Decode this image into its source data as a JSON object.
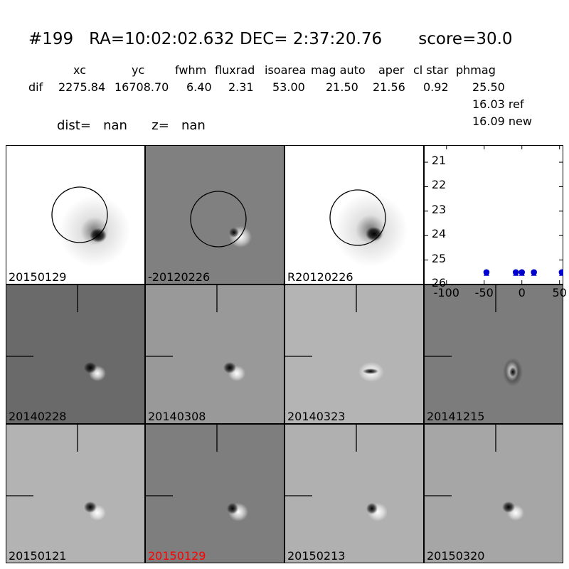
{
  "title": "#199   RA=10:02:02.632 DEC= 2:37:20.76       score=30.0",
  "columns": {
    "xc": "xc",
    "yc": "yc",
    "fwhm": "fwhm",
    "fluxrad": "fluxrad",
    "isoarea": "isoarea",
    "magauto": "mag auto",
    "aper": "aper",
    "clstar": "cl star",
    "phmag": "phmag"
  },
  "dif": {
    "label": "dif",
    "xc": "2275.84",
    "yc": "16708.70",
    "fwhm": "6.40",
    "fluxrad": "2.31",
    "isoarea": "53.00",
    "magauto": "21.50",
    "aper": "21.56",
    "clstar": "0.92",
    "phmag": "25.50"
  },
  "ref_line": "16.03 ref",
  "new_line": "16.09 new",
  "dist_line": "dist=   nan      z=   nan",
  "top_panels": [
    {
      "label": "20150129"
    },
    {
      "label": "-20120226"
    },
    {
      "label": "R20120226"
    }
  ],
  "stamps": [
    {
      "label": "20140228",
      "bg": "#6a6a6a",
      "highlight": false,
      "shape": "dipole"
    },
    {
      "label": "20140308",
      "bg": "#999999",
      "highlight": false,
      "shape": "dipole"
    },
    {
      "label": "20140323",
      "bg": "#b4b4b4",
      "highlight": false,
      "shape": "bar"
    },
    {
      "label": "20141215",
      "bg": "#7c7c7c",
      "highlight": false,
      "shape": "ring"
    },
    {
      "label": "20150121",
      "bg": "#b3b3b3",
      "highlight": false,
      "shape": "dipole"
    },
    {
      "label": "20150129",
      "bg": "#7e7e7e",
      "highlight": true,
      "shape": "crescent"
    },
    {
      "label": "20150213",
      "bg": "#b0b0b0",
      "highlight": false,
      "shape": "crescent"
    },
    {
      "label": "20150320",
      "bg": "#a6a6a6",
      "highlight": false,
      "shape": "dipole"
    }
  ],
  "chart_data": {
    "type": "scatter",
    "xlim": [
      -130,
      55
    ],
    "ylim": [
      26,
      20.3
    ],
    "yticks": [
      21,
      22,
      23,
      24,
      25,
      26
    ],
    "xticks": [
      -100,
      -50,
      0,
      50
    ],
    "x": [
      -47,
      -8,
      0,
      16,
      53
    ],
    "y": [
      25.5,
      25.5,
      25.5,
      25.5,
      25.5
    ],
    "marker_color": "#0000cc"
  },
  "colors": {
    "highlight": "#ff0000",
    "marker": "#0000cc"
  }
}
